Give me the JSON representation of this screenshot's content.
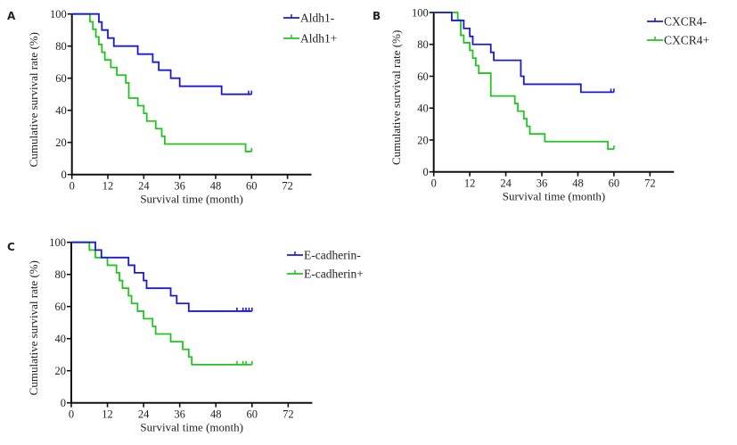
{
  "figure": {
    "panels": [
      "A",
      "B",
      "C"
    ]
  },
  "chart_data": [
    {
      "type": "line",
      "subtype": "kaplan-meier-step",
      "panel_label": "A",
      "title": "",
      "xlabel": "Survival time (month)",
      "ylabel": "Cumulative survival rate (%)",
      "xlim": [
        0,
        80
      ],
      "ylim": [
        0,
        100
      ],
      "xticks": [
        0,
        12,
        24,
        36,
        48,
        60,
        72
      ],
      "yticks": [
        0,
        20,
        40,
        60,
        80,
        100
      ],
      "grid": false,
      "legend_position": "top-right",
      "series": [
        {
          "name": "Aldh1-",
          "color": "#1a1ad6",
          "steps": [
            [
              0,
              100
            ],
            [
              9,
              95
            ],
            [
              10,
              90
            ],
            [
              12,
              85
            ],
            [
              14,
              80
            ],
            [
              22,
              75
            ],
            [
              27,
              70
            ],
            [
              29,
              65
            ],
            [
              33,
              60
            ],
            [
              36,
              55
            ],
            [
              50,
              50
            ]
          ],
          "end": 60,
          "censored": [
            59,
            60
          ]
        },
        {
          "name": "Aldh1+",
          "color": "#22c422",
          "steps": [
            [
              0,
              100
            ],
            [
              6,
              95.2
            ],
            [
              7,
              90.5
            ],
            [
              8,
              85.7
            ],
            [
              9,
              81
            ],
            [
              10,
              76.2
            ],
            [
              11,
              71.4
            ],
            [
              13,
              66.7
            ],
            [
              15,
              61.9
            ],
            [
              18,
              57.1
            ],
            [
              19,
              47.6
            ],
            [
              22,
              42.9
            ],
            [
              24,
              38.1
            ],
            [
              25,
              33.3
            ],
            [
              28,
              28.6
            ],
            [
              30,
              23.8
            ],
            [
              31,
              19
            ],
            [
              58,
              14.3
            ]
          ],
          "end": 60,
          "censored": [
            60
          ]
        }
      ]
    },
    {
      "type": "line",
      "subtype": "kaplan-meier-step",
      "panel_label": "B",
      "title": "",
      "xlabel": "Survival time (month)",
      "ylabel": "Cumulative survival rate (%)",
      "xlim": [
        0,
        80
      ],
      "ylim": [
        0,
        100
      ],
      "xticks": [
        0,
        12,
        24,
        36,
        48,
        60,
        72
      ],
      "yticks": [
        0,
        20,
        40,
        60,
        80,
        100
      ],
      "grid": false,
      "legend_position": "top-right",
      "series": [
        {
          "name": "CXCR4-",
          "color": "#1a1ad6",
          "steps": [
            [
              0,
              100
            ],
            [
              6,
              95
            ],
            [
              10,
              90
            ],
            [
              12,
              85
            ],
            [
              13,
              80
            ],
            [
              19,
              75
            ],
            [
              20,
              70
            ],
            [
              29,
              60
            ],
            [
              30,
              55
            ],
            [
              49,
              50
            ]
          ],
          "end": 60,
          "censored": [
            59,
            60
          ]
        },
        {
          "name": "CXCR4+",
          "color": "#22c422",
          "steps": [
            [
              0,
              100
            ],
            [
              8,
              95.2
            ],
            [
              9,
              85.7
            ],
            [
              10,
              81
            ],
            [
              12,
              76.2
            ],
            [
              13,
              71.4
            ],
            [
              14,
              66.7
            ],
            [
              15,
              61.9
            ],
            [
              19,
              47.6
            ],
            [
              27,
              42.9
            ],
            [
              28,
              38.1
            ],
            [
              30,
              33.3
            ],
            [
              31,
              28.6
            ],
            [
              32,
              23.8
            ],
            [
              37,
              19
            ],
            [
              58,
              14.3
            ]
          ],
          "end": 60,
          "censored": [
            60
          ]
        }
      ]
    },
    {
      "type": "line",
      "subtype": "kaplan-meier-step",
      "panel_label": "C",
      "title": "",
      "xlabel": "Survival time (month)",
      "ylabel": "Cumulative survival rate (%)",
      "xlim": [
        0,
        80
      ],
      "ylim": [
        0,
        100
      ],
      "xticks": [
        0,
        12,
        24,
        36,
        48,
        60,
        72
      ],
      "yticks": [
        0,
        20,
        40,
        60,
        80,
        100
      ],
      "grid": false,
      "legend_position": "top-right",
      "series": [
        {
          "name": "E-cadherin-",
          "color": "#1a1ad6",
          "steps": [
            [
              0,
              100
            ],
            [
              8,
              95.2
            ],
            [
              10,
              90.5
            ],
            [
              19,
              85.7
            ],
            [
              21,
              81
            ],
            [
              24,
              76.2
            ],
            [
              25,
              71.4
            ],
            [
              33,
              66.7
            ],
            [
              35,
              61.9
            ],
            [
              39,
              57.1
            ]
          ],
          "end": 60,
          "censored": [
            55,
            57,
            58,
            59,
            60
          ]
        },
        {
          "name": "E-cadherin+",
          "color": "#22c422",
          "steps": [
            [
              0,
              100
            ],
            [
              6,
              95.2
            ],
            [
              8,
              90.5
            ],
            [
              12,
              85.7
            ],
            [
              15,
              81
            ],
            [
              16,
              76.2
            ],
            [
              17,
              71.4
            ],
            [
              19,
              66.7
            ],
            [
              20,
              61.9
            ],
            [
              22,
              57.1
            ],
            [
              24,
              52.4
            ],
            [
              27,
              47.6
            ],
            [
              28,
              42.9
            ],
            [
              33,
              38.1
            ],
            [
              37,
              33.3
            ],
            [
              39,
              28.6
            ],
            [
              40,
              23.8
            ]
          ],
          "end": 60,
          "censored": [
            55,
            57,
            58,
            60
          ]
        }
      ]
    }
  ]
}
